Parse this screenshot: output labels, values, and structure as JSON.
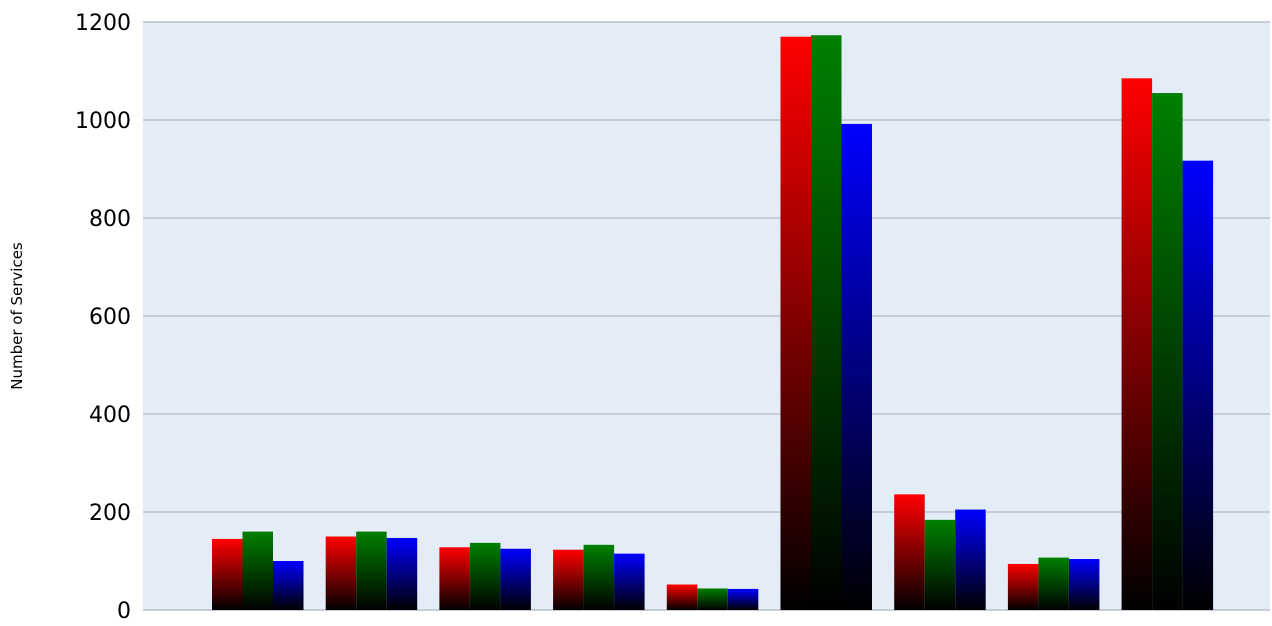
{
  "chart_data": {
    "type": "bar",
    "title": "",
    "xlabel": "",
    "ylabel": "Number of Services",
    "ylim": [
      0,
      1200
    ],
    "yticks": [
      0,
      200,
      400,
      600,
      800,
      1000,
      1200
    ],
    "grid": true,
    "legend": "none",
    "background_color": "#e4ecf8",
    "grid_color": "#c8ccd6",
    "categories": [
      "",
      "",
      "",
      "",
      "",
      "",
      "",
      "",
      ""
    ],
    "series": [
      {
        "color": "#ff0000",
        "values": [
          145,
          150,
          128,
          123,
          52,
          1170,
          236,
          94,
          1085
        ]
      },
      {
        "color": "#008000",
        "values": [
          160,
          160,
          137,
          133,
          44,
          1173,
          184,
          107,
          1055
        ]
      },
      {
        "color": "#0000ff",
        "values": [
          100,
          147,
          125,
          115,
          43,
          992,
          205,
          104,
          917
        ]
      }
    ]
  }
}
